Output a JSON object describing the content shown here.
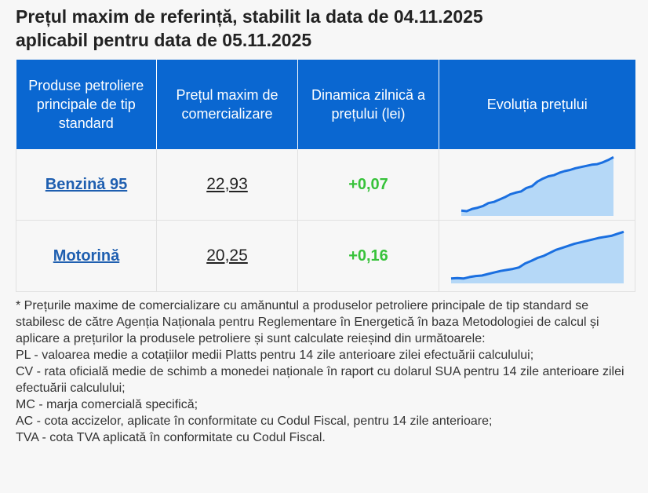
{
  "title_line1": "Prețul maxim de referință, stabilit la data de 04.11.2025",
  "title_line2": "aplicabil pentru data de 05.11.2025",
  "table": {
    "headers": [
      "Produse petroliere principale de tip standard",
      "Prețul maxim de comercializare",
      "Dinamica zilnică a prețului (lei)",
      "Evoluția prețului"
    ],
    "rows": [
      {
        "product": "Benzină 95",
        "price": "22,93",
        "delta": "+0,07",
        "trend": [
          0.05,
          0.04,
          0.08,
          0.1,
          0.13,
          0.18,
          0.2,
          0.24,
          0.28,
          0.33,
          0.36,
          0.38,
          0.44,
          0.47,
          0.55,
          0.6,
          0.64,
          0.66,
          0.7,
          0.73,
          0.75,
          0.78,
          0.8,
          0.82,
          0.84,
          0.85,
          0.88,
          0.92,
          0.97
        ]
      },
      {
        "product": "Motorină",
        "price": "20,25",
        "delta": "+0,16",
        "trend": [
          0.05,
          0.06,
          0.05,
          0.08,
          0.1,
          0.11,
          0.14,
          0.17,
          0.2,
          0.22,
          0.24,
          0.27,
          0.35,
          0.4,
          0.46,
          0.5,
          0.56,
          0.62,
          0.66,
          0.7,
          0.74,
          0.77,
          0.8,
          0.83,
          0.86,
          0.88,
          0.9,
          0.94,
          0.98
        ]
      }
    ]
  },
  "notes": [
    "* Prețurile maxime de comercializare cu amănuntul a produselor petroliere principale de tip standard se stabilesc de către Agenția Naționala pentru Reglementare în Energetică în baza Metodologiei de calcul și aplicare a prețurilor la produsele petroliere și sunt calculate reieșind din următoarele:",
    "PL - valoarea medie a cotațiilor medii Platts pentru 14 zile anterioare zilei efectuării calculului;",
    "CV - rata oficială medie de schimb a monedei naționale în raport cu dolarul SUA pentru 14 zile anterioare zilei efectuării calculului;",
    "MC - marja comercială specifică;",
    "AC - cota accizelor, aplicate în conformitate cu Codul Fiscal, pentru 14 zile anterioare;",
    "TVA - cota TVA aplicată în conformitate cu Codul Fiscal."
  ],
  "colors": {
    "header_bg": "#0a67d1",
    "link": "#1f5fb0",
    "delta_positive": "#37c23a",
    "spark_line": "#1a6fe0",
    "spark_fill": "#a9d2f7"
  }
}
